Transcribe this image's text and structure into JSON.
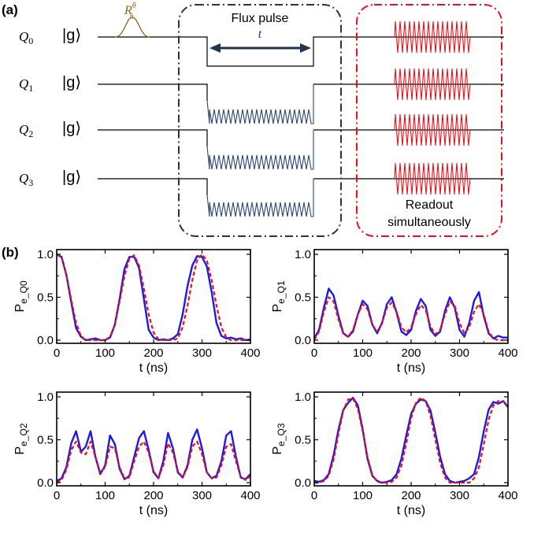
{
  "panel_a": {
    "label": "(a)",
    "qubits": [
      {
        "name": "Q",
        "sub": "0",
        "state": "|g⟩"
      },
      {
        "name": "Q",
        "sub": "1",
        "state": "|g⟩"
      },
      {
        "name": "Q",
        "sub": "2",
        "state": "|g⟩"
      },
      {
        "name": "Q",
        "sub": "3",
        "state": "|g⟩"
      }
    ],
    "rotation": {
      "main": "R",
      "sup": "θ",
      "sub": "n̂"
    },
    "flux_box": {
      "title": "Flux pulse",
      "t_label": "t"
    },
    "readout_box": {
      "line1": "Readout",
      "line2": "simultaneously"
    },
    "colors": {
      "circuit": "#000000",
      "flux_box": "#1f3556",
      "oscillation": "#2c4770",
      "readout": "#e8101a",
      "rotation_pulse": "#8b6914"
    }
  },
  "panel_b": {
    "label": "(b)"
  },
  "chart_data": [
    {
      "type": "line",
      "ylabel_main": "P",
      "ylabel_sub": "e_Q0",
      "xlabel": "t (ns)",
      "xlim": [
        0,
        400
      ],
      "ylim": [
        0,
        1
      ],
      "xticks": [
        "0",
        "100",
        "200",
        "300",
        "400"
      ],
      "yticks": [
        "0.0",
        "0.5",
        "1.0"
      ],
      "series": [
        {
          "style": "solid",
          "color": "#1a1aee",
          "x": [
            0,
            10,
            20,
            30,
            40,
            50,
            60,
            70,
            80,
            90,
            100,
            110,
            120,
            130,
            140,
            150,
            160,
            170,
            180,
            190,
            200,
            210,
            220,
            230,
            240,
            250,
            260,
            270,
            280,
            290,
            300,
            310,
            320,
            330,
            340,
            350,
            360,
            370,
            380,
            390,
            400
          ],
          "y": [
            1.0,
            0.97,
            0.76,
            0.44,
            0.14,
            0.04,
            0.0,
            0.01,
            0.02,
            0.0,
            0.0,
            0.03,
            0.18,
            0.48,
            0.83,
            0.97,
            0.97,
            0.84,
            0.48,
            0.12,
            0.03,
            0.0,
            0.01,
            0.0,
            0.02,
            0.07,
            0.3,
            0.63,
            0.87,
            0.98,
            0.97,
            0.86,
            0.56,
            0.2,
            0.05,
            0.02,
            0.03,
            0.01,
            0.02,
            0.0,
            0.01
          ]
        },
        {
          "style": "dashed",
          "color": "#e8101a",
          "x": [
            0,
            10,
            20,
            30,
            40,
            50,
            60,
            70,
            80,
            90,
            100,
            110,
            120,
            130,
            140,
            150,
            160,
            170,
            180,
            190,
            200,
            210,
            220,
            230,
            240,
            250,
            260,
            270,
            280,
            290,
            300,
            310,
            320,
            330,
            340,
            350,
            360,
            370,
            380,
            390,
            400
          ],
          "y": [
            1.0,
            0.96,
            0.76,
            0.47,
            0.2,
            0.05,
            0.0,
            0.0,
            0.0,
            0.0,
            0.0,
            0.04,
            0.18,
            0.45,
            0.75,
            0.95,
            0.99,
            0.87,
            0.6,
            0.3,
            0.09,
            0.01,
            0.0,
            0.0,
            0.0,
            0.02,
            0.15,
            0.4,
            0.7,
            0.93,
            1.0,
            0.93,
            0.7,
            0.4,
            0.15,
            0.03,
            0.0,
            0.0,
            0.0,
            0.0,
            0.0
          ]
        }
      ]
    },
    {
      "type": "line",
      "ylabel_main": "P",
      "ylabel_sub": "e_Q1",
      "xlabel": "t (ns)",
      "xlim": [
        0,
        400
      ],
      "ylim": [
        0,
        1
      ],
      "xticks": [
        "0",
        "100",
        "200",
        "300",
        "400"
      ],
      "yticks": [
        "0.0",
        "0.5",
        "1.0"
      ],
      "series": [
        {
          "style": "solid",
          "color": "#1a1aee",
          "x": [
            0,
            10,
            20,
            30,
            40,
            50,
            60,
            70,
            80,
            90,
            100,
            110,
            120,
            130,
            140,
            150,
            160,
            170,
            180,
            190,
            200,
            210,
            220,
            230,
            240,
            250,
            260,
            270,
            280,
            290,
            300,
            310,
            320,
            330,
            340,
            350,
            360,
            370,
            380,
            390,
            400
          ],
          "y": [
            0.02,
            0.12,
            0.38,
            0.6,
            0.52,
            0.28,
            0.08,
            0.04,
            0.1,
            0.3,
            0.46,
            0.4,
            0.18,
            0.08,
            0.2,
            0.42,
            0.5,
            0.32,
            0.1,
            0.06,
            0.12,
            0.34,
            0.48,
            0.4,
            0.12,
            0.05,
            0.1,
            0.34,
            0.5,
            0.38,
            0.12,
            0.04,
            0.2,
            0.46,
            0.56,
            0.28,
            0.08,
            0.02,
            0.05,
            0.03,
            0.03
          ]
        },
        {
          "style": "dashed",
          "color": "#e8101a",
          "x": [
            0,
            10,
            20,
            30,
            40,
            50,
            60,
            70,
            80,
            90,
            100,
            110,
            120,
            130,
            140,
            150,
            160,
            170,
            180,
            190,
            200,
            210,
            220,
            230,
            240,
            250,
            260,
            270,
            280,
            290,
            300,
            310,
            320,
            330,
            340,
            350,
            360,
            370,
            380,
            390,
            400
          ],
          "y": [
            0.0,
            0.1,
            0.33,
            0.5,
            0.45,
            0.24,
            0.07,
            0.04,
            0.12,
            0.3,
            0.42,
            0.36,
            0.18,
            0.1,
            0.2,
            0.38,
            0.44,
            0.33,
            0.15,
            0.09,
            0.15,
            0.3,
            0.41,
            0.35,
            0.16,
            0.07,
            0.12,
            0.3,
            0.45,
            0.4,
            0.2,
            0.08,
            0.15,
            0.33,
            0.42,
            0.3,
            0.1,
            0.02,
            0.0,
            0.0,
            0.0
          ]
        }
      ]
    },
    {
      "type": "line",
      "ylabel_main": "P",
      "ylabel_sub": "e_Q2",
      "xlabel": "t (ns)",
      "xlim": [
        0,
        400
      ],
      "ylim": [
        0,
        1
      ],
      "xticks": [
        "0",
        "100",
        "200",
        "300",
        "400"
      ],
      "yticks": [
        "0.0",
        "0.5",
        "1.0"
      ],
      "series": [
        {
          "style": "solid",
          "color": "#1a1aee",
          "x": [
            0,
            10,
            20,
            30,
            40,
            50,
            60,
            70,
            80,
            90,
            100,
            110,
            120,
            130,
            140,
            150,
            160,
            170,
            180,
            190,
            200,
            210,
            220,
            230,
            240,
            250,
            260,
            270,
            280,
            290,
            300,
            310,
            320,
            330,
            340,
            350,
            360,
            370,
            380,
            390,
            400
          ],
          "y": [
            0.02,
            0.05,
            0.18,
            0.46,
            0.6,
            0.36,
            0.42,
            0.6,
            0.3,
            0.1,
            0.2,
            0.55,
            0.45,
            0.16,
            0.04,
            0.08,
            0.3,
            0.52,
            0.6,
            0.38,
            0.12,
            0.05,
            0.25,
            0.58,
            0.4,
            0.12,
            0.06,
            0.2,
            0.5,
            0.62,
            0.4,
            0.12,
            0.05,
            0.08,
            0.25,
            0.55,
            0.6,
            0.3,
            0.06,
            0.04,
            0.1
          ]
        },
        {
          "style": "dashed",
          "color": "#e8101a",
          "x": [
            0,
            10,
            20,
            30,
            40,
            50,
            60,
            70,
            80,
            90,
            100,
            110,
            120,
            130,
            140,
            150,
            160,
            170,
            180,
            190,
            200,
            210,
            220,
            230,
            240,
            250,
            260,
            270,
            280,
            290,
            300,
            310,
            320,
            330,
            340,
            350,
            360,
            370,
            380,
            390,
            400
          ],
          "y": [
            0.0,
            0.03,
            0.15,
            0.38,
            0.48,
            0.35,
            0.33,
            0.48,
            0.3,
            0.12,
            0.18,
            0.42,
            0.4,
            0.18,
            0.05,
            0.06,
            0.25,
            0.42,
            0.48,
            0.35,
            0.13,
            0.06,
            0.2,
            0.46,
            0.35,
            0.14,
            0.06,
            0.18,
            0.42,
            0.48,
            0.33,
            0.12,
            0.05,
            0.06,
            0.2,
            0.42,
            0.45,
            0.25,
            0.07,
            0.03,
            0.08
          ]
        }
      ]
    },
    {
      "type": "line",
      "ylabel_main": "P",
      "ylabel_sub": "e_Q3",
      "xlabel": "t (ns)",
      "xlim": [
        0,
        400
      ],
      "ylim": [
        0,
        1
      ],
      "xticks": [
        "0",
        "100",
        "200",
        "300",
        "400"
      ],
      "yticks": [
        "0.0",
        "0.5",
        "1.0"
      ],
      "series": [
        {
          "style": "solid",
          "color": "#1a1aee",
          "x": [
            0,
            10,
            20,
            30,
            40,
            50,
            60,
            70,
            80,
            90,
            100,
            110,
            120,
            130,
            140,
            150,
            160,
            170,
            180,
            190,
            200,
            210,
            220,
            230,
            240,
            250,
            260,
            270,
            280,
            290,
            300,
            310,
            320,
            330,
            340,
            350,
            360,
            370,
            380,
            390,
            400
          ],
          "y": [
            0.02,
            0.01,
            0.03,
            0.1,
            0.32,
            0.62,
            0.85,
            0.93,
            0.99,
            0.9,
            0.62,
            0.28,
            0.08,
            0.02,
            0.0,
            0.01,
            0.03,
            0.1,
            0.28,
            0.55,
            0.8,
            0.92,
            0.97,
            0.95,
            0.84,
            0.58,
            0.3,
            0.1,
            0.02,
            0.0,
            0.01,
            0.02,
            0.05,
            0.1,
            0.3,
            0.6,
            0.85,
            0.94,
            0.92,
            0.95,
            0.88
          ]
        },
        {
          "style": "dashed",
          "color": "#e8101a",
          "x": [
            0,
            10,
            20,
            30,
            40,
            50,
            60,
            70,
            80,
            90,
            100,
            110,
            120,
            130,
            140,
            150,
            160,
            170,
            180,
            190,
            200,
            210,
            220,
            230,
            240,
            250,
            260,
            270,
            280,
            290,
            300,
            310,
            320,
            330,
            340,
            350,
            360,
            370,
            380,
            390,
            400
          ],
          "y": [
            0.0,
            0.0,
            0.02,
            0.08,
            0.27,
            0.57,
            0.84,
            0.97,
            0.98,
            0.86,
            0.6,
            0.3,
            0.09,
            0.01,
            0.0,
            0.0,
            0.01,
            0.06,
            0.2,
            0.46,
            0.75,
            0.93,
            0.99,
            0.95,
            0.78,
            0.5,
            0.23,
            0.06,
            0.0,
            0.0,
            0.0,
            0.0,
            0.0,
            0.05,
            0.18,
            0.45,
            0.73,
            0.9,
            0.95,
            0.95,
            0.9
          ]
        }
      ]
    }
  ]
}
